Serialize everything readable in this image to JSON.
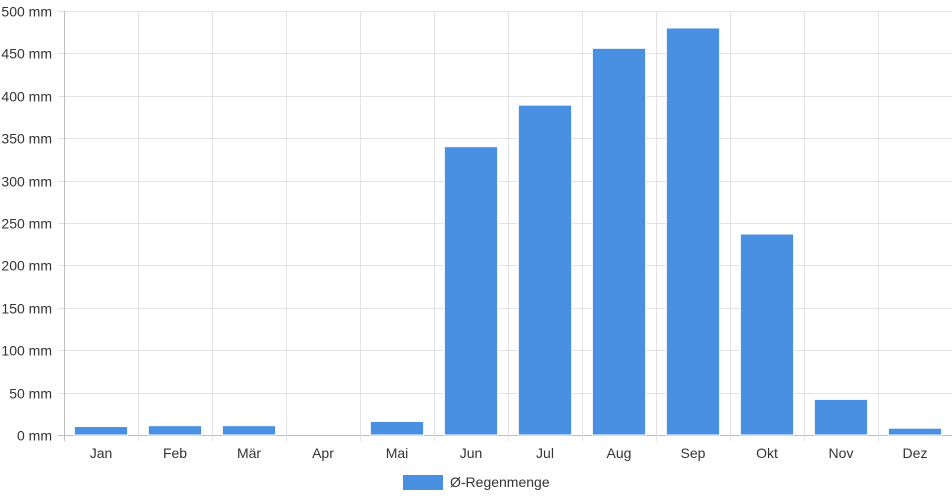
{
  "chart_data": {
    "type": "bar",
    "categories": [
      "Jan",
      "Feb",
      "Mär",
      "Apr",
      "Mai",
      "Jun",
      "Jul",
      "Aug",
      "Sep",
      "Okt",
      "Nov",
      "Dez"
    ],
    "series": [
      {
        "name": "Ø-Regenmenge",
        "color": "#4a90e2",
        "values": [
          10,
          11,
          11,
          0,
          16,
          340,
          389,
          456,
          480,
          237,
          42,
          8
        ]
      }
    ],
    "y_ticks": [
      "0 mm",
      "50 mm",
      "100 mm",
      "150 mm",
      "200 mm",
      "250 mm",
      "300 mm",
      "350 mm",
      "400 mm",
      "450 mm",
      "500 mm"
    ],
    "ylim": [
      0,
      500
    ],
    "y_step": 50,
    "unit": "mm",
    "grid": true,
    "legend_position": "bottom"
  }
}
